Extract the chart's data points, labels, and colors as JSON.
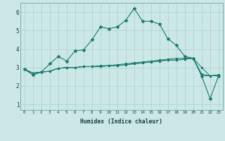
{
  "xlabel": "Humidex (Indice chaleur)",
  "x": [
    0,
    1,
    2,
    3,
    4,
    5,
    6,
    7,
    8,
    9,
    10,
    11,
    12,
    13,
    14,
    15,
    16,
    17,
    18,
    19,
    20,
    21,
    22,
    23
  ],
  "line1": [
    2.9,
    2.6,
    2.75,
    3.2,
    3.6,
    3.35,
    3.9,
    3.95,
    4.5,
    5.2,
    5.1,
    5.2,
    5.55,
    6.2,
    5.5,
    5.5,
    5.35,
    4.55,
    4.2,
    3.6,
    3.5,
    2.55,
    1.3,
    2.55
  ],
  "line2": [
    2.9,
    2.7,
    2.75,
    2.8,
    2.95,
    3.0,
    3.0,
    3.05,
    3.05,
    3.1,
    3.1,
    3.15,
    3.2,
    3.25,
    3.3,
    3.35,
    3.4,
    3.45,
    3.5,
    3.5,
    3.5,
    3.0,
    2.55,
    2.55
  ],
  "line3": [
    2.9,
    2.7,
    2.75,
    2.8,
    2.95,
    3.0,
    3.0,
    3.05,
    3.05,
    3.05,
    3.1,
    3.1,
    3.15,
    3.2,
    3.25,
    3.3,
    3.35,
    3.4,
    3.4,
    3.45,
    3.5,
    2.65,
    2.55,
    2.6
  ],
  "line4": [
    2.9,
    2.7,
    2.75,
    2.8,
    2.95,
    3.0,
    3.0,
    3.05,
    3.05,
    3.05,
    3.1,
    3.1,
    3.15,
    3.2,
    3.25,
    3.3,
    3.35,
    3.4,
    3.4,
    3.45,
    3.5,
    2.55,
    2.55,
    2.6
  ],
  "line_color": "#1a7a6e",
  "bg_color": "#cce8e6",
  "grid_color": "#aacfcd",
  "ylim": [
    0.7,
    6.5
  ],
  "yticks": [
    1,
    2,
    3,
    4,
    5,
    6
  ],
  "xlim": [
    -0.5,
    23.5
  ]
}
